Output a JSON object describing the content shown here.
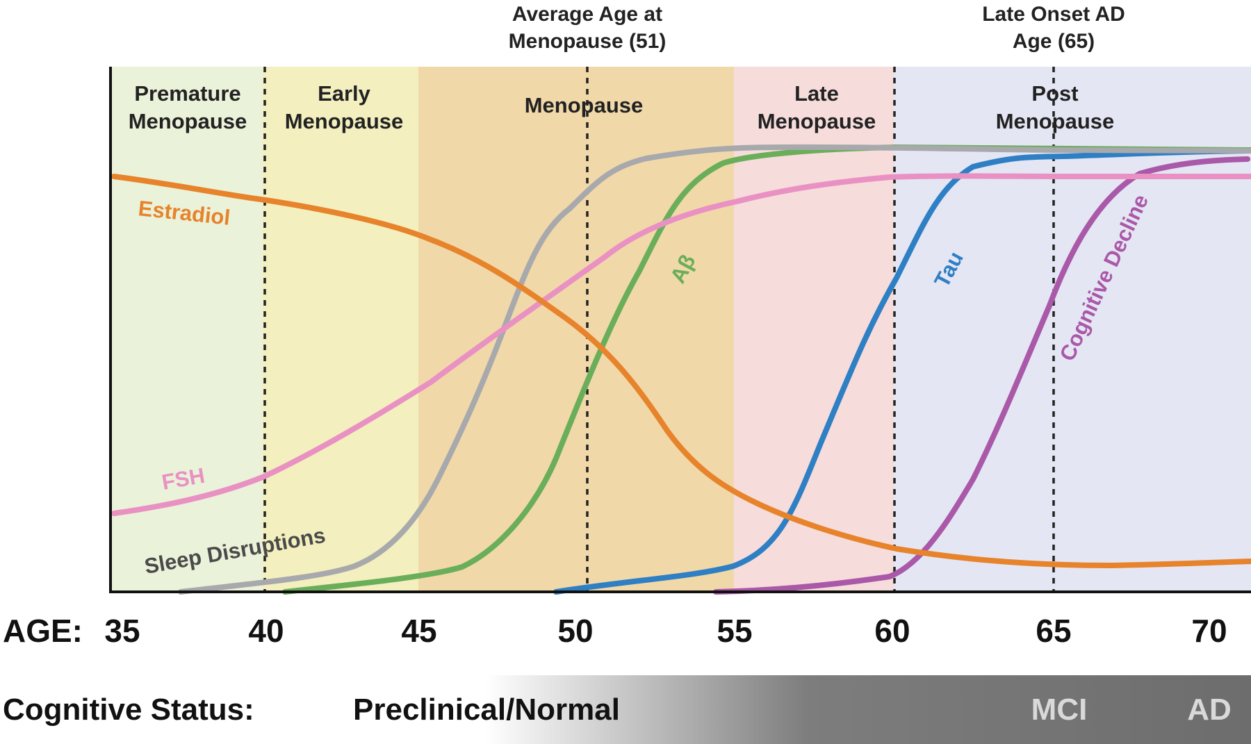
{
  "annotations": {
    "menopause_avg": {
      "line1": "Average Age at",
      "line2": "Menopause (51)"
    },
    "late_onset_ad": {
      "line1": "Late Onset AD",
      "line2": "Age (65)"
    }
  },
  "stages": [
    {
      "id": "premature",
      "line1": "Premature",
      "line2": "Menopause",
      "from": 35,
      "to": 40,
      "color": "#eaf2d9"
    },
    {
      "id": "early",
      "line1": "Early",
      "line2": "Menopause",
      "from": 40,
      "to": 45,
      "color": "#f3efbe"
    },
    {
      "id": "menopause",
      "line1": "Menopause",
      "line2": "",
      "from": 45,
      "to": 55,
      "color": "#f1d8a9"
    },
    {
      "id": "late",
      "line1": "Late",
      "line2": "Menopause",
      "from": 55,
      "to": 60,
      "color": "#f6dcdb"
    },
    {
      "id": "post",
      "line1": "Post",
      "line2": "Menopause",
      "from": 60,
      "to": 72,
      "color": "#e4e6f4"
    }
  ],
  "age_axis": {
    "label": "AGE:",
    "ticks": [
      "35",
      "40",
      "45",
      "50",
      "55",
      "60",
      "65",
      "70"
    ]
  },
  "cognitive_status": {
    "label": "Cognitive Status:",
    "stages": [
      "Preclinical/Normal",
      "MCI",
      "AD"
    ]
  },
  "curves": [
    {
      "id": "estradiol",
      "label": "Estradiol",
      "color": "#e7832b"
    },
    {
      "id": "fsh",
      "label": "FSH",
      "color": "#e991c3"
    },
    {
      "id": "sleep",
      "label": "Sleep Disruptions",
      "color": "#a7a9ac"
    },
    {
      "id": "abeta",
      "label": "Aβ",
      "color": "#6aae5a"
    },
    {
      "id": "tau",
      "label": "Tau",
      "color": "#2f7fc4"
    },
    {
      "id": "cognitive",
      "label": "Cognitive Decline",
      "color": "#aa58a8"
    }
  ]
}
